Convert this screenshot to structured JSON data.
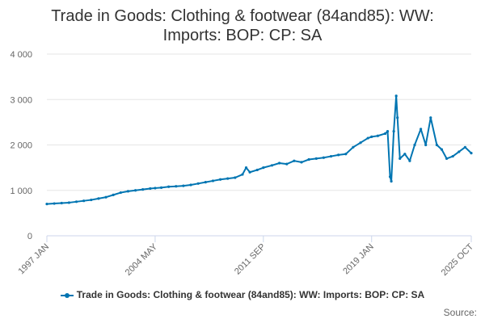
{
  "chart_data": {
    "type": "line",
    "title": "Trade in Goods: Clothing & footwear (84and85): WW: Imports: BOP: CP: SA",
    "xlabel": "",
    "ylabel": "",
    "x_range": [
      "1997 JAN",
      "2025 OCT"
    ],
    "x_tick_labels": [
      "1997 JAN",
      "2004 MAY",
      "2011 SEP",
      "2019 JAN",
      "2025 OCT"
    ],
    "y_tick_labels": [
      "0",
      "1 000",
      "2 000",
      "3 000",
      "4 000"
    ],
    "ylim": [
      0,
      4000
    ],
    "grid": "horizontal",
    "legend": "bottom",
    "series": [
      {
        "name": "Trade in Goods: Clothing & footwear (84and85): WW: Imports: BOP: CP: SA",
        "color": "#0075b2",
        "points": [
          [
            "1997 JAN",
            700
          ],
          [
            "1997 JUL",
            710
          ],
          [
            "1998 JAN",
            720
          ],
          [
            "1998 JUL",
            730
          ],
          [
            "1999 JAN",
            750
          ],
          [
            "1999 JUL",
            770
          ],
          [
            "2000 JAN",
            790
          ],
          [
            "2000 JUL",
            820
          ],
          [
            "2001 JAN",
            850
          ],
          [
            "2001 JUL",
            900
          ],
          [
            "2002 JAN",
            950
          ],
          [
            "2002 JUL",
            980
          ],
          [
            "2003 JAN",
            1000
          ],
          [
            "2003 JUL",
            1020
          ],
          [
            "2004 JAN",
            1040
          ],
          [
            "2004 MAY",
            1050
          ],
          [
            "2004 OCT",
            1060
          ],
          [
            "2005 APR",
            1080
          ],
          [
            "2005 OCT",
            1090
          ],
          [
            "2006 APR",
            1100
          ],
          [
            "2006 OCT",
            1120
          ],
          [
            "2007 APR",
            1150
          ],
          [
            "2007 OCT",
            1180
          ],
          [
            "2008 APR",
            1210
          ],
          [
            "2008 OCT",
            1240
          ],
          [
            "2009 APR",
            1260
          ],
          [
            "2009 OCT",
            1280
          ],
          [
            "2010 APR",
            1350
          ],
          [
            "2010 JUL",
            1500
          ],
          [
            "2010 OCT",
            1400
          ],
          [
            "2011 APR",
            1450
          ],
          [
            "2011 SEP",
            1500
          ],
          [
            "2012 APR",
            1550
          ],
          [
            "2012 OCT",
            1600
          ],
          [
            "2013 APR",
            1580
          ],
          [
            "2013 OCT",
            1650
          ],
          [
            "2014 APR",
            1620
          ],
          [
            "2014 OCT",
            1680
          ],
          [
            "2015 APR",
            1700
          ],
          [
            "2015 OCT",
            1720
          ],
          [
            "2016 APR",
            1750
          ],
          [
            "2016 OCT",
            1780
          ],
          [
            "2017 APR",
            1800
          ],
          [
            "2017 OCT",
            1950
          ],
          [
            "2018 APR",
            2050
          ],
          [
            "2018 OCT",
            2150
          ],
          [
            "2019 JAN",
            2180
          ],
          [
            "2019 JUN",
            2200
          ],
          [
            "2019 DEC",
            2250
          ],
          [
            "2020 FEB",
            2300
          ],
          [
            "2020 APR",
            1300
          ],
          [
            "2020 MAY",
            1200
          ],
          [
            "2020 JUL",
            2300
          ],
          [
            "2020 SEP",
            3080
          ],
          [
            "2020 OCT",
            2600
          ],
          [
            "2020 DEC",
            1700
          ],
          [
            "2021 APR",
            1800
          ],
          [
            "2021 AUG",
            1650
          ],
          [
            "2021 DEC",
            2000
          ],
          [
            "2022 MAY",
            2350
          ],
          [
            "2022 SEP",
            2000
          ],
          [
            "2023 JAN",
            2600
          ],
          [
            "2023 JUN",
            2000
          ],
          [
            "2023 OCT",
            1900
          ],
          [
            "2024 FEB",
            1700
          ],
          [
            "2024 JUL",
            1750
          ],
          [
            "2024 DEC",
            1850
          ],
          [
            "2025 MAY",
            1950
          ],
          [
            "2025 OCT",
            1820
          ]
        ]
      }
    ]
  },
  "credits": "Source:"
}
